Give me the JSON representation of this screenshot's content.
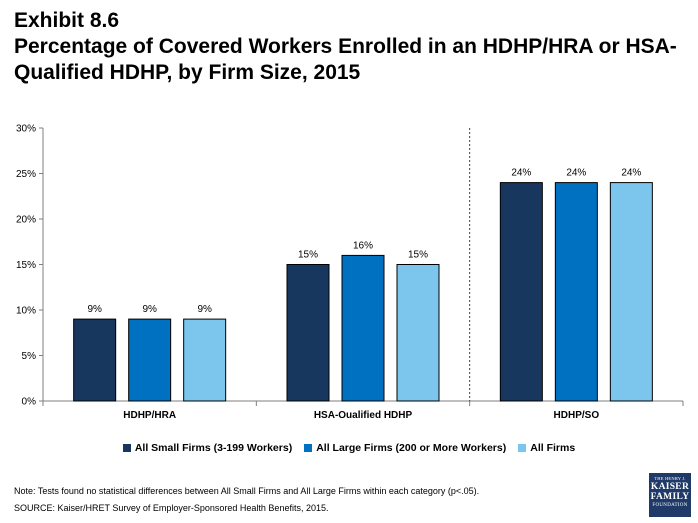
{
  "title": {
    "line1": "Exhibit 8.6",
    "line2": "Percentage of Covered Workers Enrolled in an HDHP/HRA or HSA-",
    "line3": "Qualified HDHP, by Firm Size, 2015"
  },
  "chart_data": {
    "type": "bar",
    "categories": [
      "HDHP/HRA",
      "HSA-Qualified HDHP",
      "HDHP/SO"
    ],
    "series": [
      {
        "name": "All Small Firms (3-199 Workers)",
        "color": "#17375e",
        "values": [
          9,
          15,
          24
        ],
        "labels": [
          "9%",
          "15%",
          "24%"
        ]
      },
      {
        "name": "All Large Firms (200 or More Workers)",
        "color": "#0070c0",
        "values": [
          9,
          16,
          24
        ],
        "labels": [
          "9%",
          "16%",
          "24%"
        ]
      },
      {
        "name": "All Firms",
        "color": "#7cc6ee",
        "values": [
          9,
          15,
          24
        ],
        "labels": [
          "9%",
          "15%",
          "24%"
        ]
      }
    ],
    "yticks": [
      {
        "value": 0,
        "label": "0%"
      },
      {
        "value": 5,
        "label": "5%"
      },
      {
        "value": 10,
        "label": "10%"
      },
      {
        "value": 15,
        "label": "15%"
      },
      {
        "value": 20,
        "label": "20%"
      },
      {
        "value": 25,
        "label": "25%"
      },
      {
        "value": 30,
        "label": "30%"
      }
    ],
    "ylim": [
      0,
      30
    ],
    "grid": false,
    "legend_position": "bottom"
  },
  "notes": {
    "note": "Note: Tests found no statistical differences between All Small Firms and All Large Firms within each category (p<.05).",
    "source": "SOURCE:  Kaiser/HRET Survey of Employer-Sponsored Health Benefits, 2015."
  },
  "logo": {
    "line1": "THE HENRY J.",
    "line2": "KAISER",
    "line3": "FAMILY",
    "line4": "FOUNDATION"
  }
}
